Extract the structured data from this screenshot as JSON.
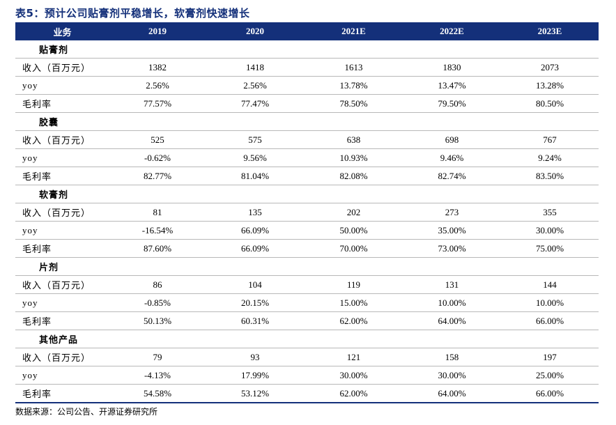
{
  "title": "表5：预计公司贴膏剂平稳增长，软膏剂快速增长",
  "headers": [
    "业务",
    "2019",
    "2020",
    "2021E",
    "2022E",
    "2023E"
  ],
  "groups": [
    {
      "name": "贴膏剂",
      "rows": [
        {
          "label": "收入（百万元）",
          "values": [
            "1382",
            "1418",
            "1613",
            "1830",
            "2073"
          ]
        },
        {
          "label": "yoy",
          "values": [
            "2.56%",
            "2.56%",
            "13.78%",
            "13.47%",
            "13.28%"
          ]
        },
        {
          "label": "毛利率",
          "values": [
            "77.57%",
            "77.47%",
            "78.50%",
            "79.50%",
            "80.50%"
          ]
        }
      ]
    },
    {
      "name": "胶囊",
      "rows": [
        {
          "label": "收入（百万元）",
          "values": [
            "525",
            "575",
            "638",
            "698",
            "767"
          ]
        },
        {
          "label": "yoy",
          "values": [
            "-0.62%",
            "9.56%",
            "10.93%",
            "9.46%",
            "9.24%"
          ]
        },
        {
          "label": "毛利率",
          "values": [
            "82.77%",
            "81.04%",
            "82.08%",
            "82.74%",
            "83.50%"
          ]
        }
      ]
    },
    {
      "name": "软膏剂",
      "rows": [
        {
          "label": "收入（百万元）",
          "values": [
            "81",
            "135",
            "202",
            "273",
            "355"
          ]
        },
        {
          "label": "yoy",
          "values": [
            "-16.54%",
            "66.09%",
            "50.00%",
            "35.00%",
            "30.00%"
          ]
        },
        {
          "label": "毛利率",
          "values": [
            "87.60%",
            "66.09%",
            "70.00%",
            "73.00%",
            "75.00%"
          ]
        }
      ]
    },
    {
      "name": "片剂",
      "rows": [
        {
          "label": "收入（百万元）",
          "values": [
            "86",
            "104",
            "119",
            "131",
            "144"
          ]
        },
        {
          "label": "yoy",
          "values": [
            "-0.85%",
            "20.15%",
            "15.00%",
            "10.00%",
            "10.00%"
          ]
        },
        {
          "label": "毛利率",
          "values": [
            "50.13%",
            "60.31%",
            "62.00%",
            "64.00%",
            "66.00%"
          ]
        }
      ]
    },
    {
      "name": "其他产品",
      "rows": [
        {
          "label": "收入（百万元）",
          "values": [
            "79",
            "93",
            "121",
            "158",
            "197"
          ]
        },
        {
          "label": "yoy",
          "values": [
            "-4.13%",
            "17.99%",
            "30.00%",
            "30.00%",
            "25.00%"
          ]
        },
        {
          "label": "毛利率",
          "values": [
            "54.58%",
            "53.12%",
            "62.00%",
            "64.00%",
            "66.00%"
          ]
        }
      ]
    }
  ],
  "source": "数据来源：公司公告、开源证券研究所",
  "colors": {
    "header_bg": "#14307a",
    "title": "#14307a",
    "rule": "#b8b8b8"
  }
}
